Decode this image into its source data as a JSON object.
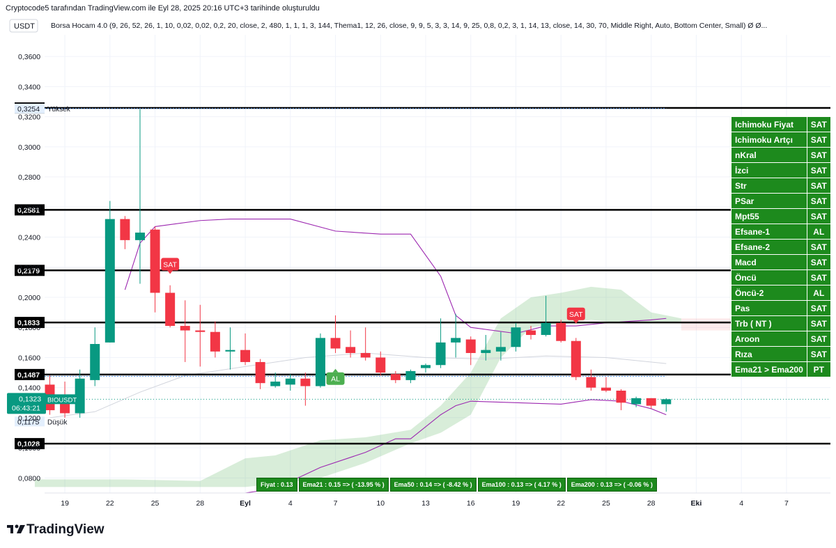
{
  "caption": "Cryptocode5 tarafından TradingView.com ile Eyl 28, 2025 20:16 UTC+3 tarihinde oluşturuldu",
  "indicator_bar": {
    "currency": "USDT",
    "settings": "Borsa Hocam 4.0 (9, 26, 52, 26, 1, 10, 0,02, 0,02, 0,2, 20, close, 2, 480, 1, 1, 1, 3, 144, Thema1, 12, 26, close, 9, 9, 5, 3, 3, 14, 9, 25, 0,8, 0,2, 3, 1, 14, 13, close, 14, 30, 70, Middle Right, Auto, Bottom Center, Small)  Ø  Ø..."
  },
  "brand": "TradingView",
  "colors": {
    "up": "#089981",
    "down": "#f23645",
    "panel_green": "#1d8a1d",
    "ichimoku_line": "#9c27b0"
  },
  "signal_table": [
    {
      "name": "Ichimoku Fiyat",
      "signal": "SAT"
    },
    {
      "name": "Ichimoku Artçı",
      "signal": "SAT"
    },
    {
      "name": "nKral",
      "signal": "SAT"
    },
    {
      "name": "İzci",
      "signal": "SAT"
    },
    {
      "name": "Str",
      "signal": "SAT"
    },
    {
      "name": "PSar",
      "signal": "SAT"
    },
    {
      "name": "Mpt55",
      "signal": "SAT"
    },
    {
      "name": "Efsane-1",
      "signal": "AL"
    },
    {
      "name": "Efsane-2",
      "signal": "SAT"
    },
    {
      "name": "Macd",
      "signal": "SAT"
    },
    {
      "name": "Öncü",
      "signal": "SAT"
    },
    {
      "name": "Öncü-2",
      "signal": "AL"
    },
    {
      "name": "Pas",
      "signal": "SAT"
    },
    {
      "name": "Trb ( NT )",
      "signal": "SAT"
    },
    {
      "name": "Aroon",
      "signal": "SAT"
    },
    {
      "name": "Rıza",
      "signal": "SAT"
    },
    {
      "name": "Ema21 > Ema200",
      "signal": "PT"
    }
  ],
  "ema_strip": [
    "Fiyat : 0.13",
    "Ema21 : 0.15 => ( -13.95 % )",
    "Ema50 : 0.14 => ( -8.42 % )",
    "Ema100 : 0.13 => ( 4.17 % )",
    "Ema200 : 0.13 => ( -0.06 % )"
  ],
  "chart_data": {
    "type": "candlestick",
    "symbol": "BIOUSDT",
    "ylim": [
      0.07,
      0.367
    ],
    "y_ticks": [
      "0,0800",
      "0,1000",
      "0,1200",
      "0,1400",
      "0,1600",
      "0,1800",
      "0,2000",
      "0,2200",
      "0,2400",
      "0,2600",
      "0,2800",
      "0,3000",
      "0,3200",
      "0,3400",
      "0,3600"
    ],
    "x_ticks": [
      {
        "label": "19",
        "i": 1
      },
      {
        "label": "22",
        "i": 4
      },
      {
        "label": "25",
        "i": 7
      },
      {
        "label": "28",
        "i": 10
      },
      {
        "label": "Eyl",
        "i": 13
      },
      {
        "label": "4",
        "i": 16
      },
      {
        "label": "7",
        "i": 19
      },
      {
        "label": "10",
        "i": 22
      },
      {
        "label": "13",
        "i": 25
      },
      {
        "label": "16",
        "i": 28
      },
      {
        "label": "19",
        "i": 31
      },
      {
        "label": "22",
        "i": 34
      },
      {
        "label": "25",
        "i": 37
      },
      {
        "label": "28",
        "i": 40
      },
      {
        "label": "Eki",
        "i": 43
      },
      {
        "label": "4",
        "i": 46
      },
      {
        "label": "7",
        "i": 49
      }
    ],
    "candles": [
      {
        "o": 0.142,
        "h": 0.148,
        "l": 0.122,
        "c": 0.125
      },
      {
        "o": 0.132,
        "h": 0.144,
        "l": 0.12,
        "c": 0.123
      },
      {
        "o": 0.123,
        "h": 0.152,
        "l": 0.12,
        "c": 0.146
      },
      {
        "o": 0.145,
        "h": 0.18,
        "l": 0.141,
        "c": 0.169
      },
      {
        "o": 0.17,
        "h": 0.264,
        "l": 0.17,
        "c": 0.252
      },
      {
        "o": 0.252,
        "h": 0.254,
        "l": 0.232,
        "c": 0.238
      },
      {
        "o": 0.238,
        "h": 0.325,
        "l": 0.209,
        "c": 0.243
      },
      {
        "o": 0.245,
        "h": 0.247,
        "l": 0.19,
        "c": 0.203
      },
      {
        "o": 0.203,
        "h": 0.208,
        "l": 0.18,
        "c": 0.181
      },
      {
        "o": 0.181,
        "h": 0.198,
        "l": 0.157,
        "c": 0.178
      },
      {
        "o": 0.178,
        "h": 0.195,
        "l": 0.154,
        "c": 0.177
      },
      {
        "o": 0.177,
        "h": 0.184,
        "l": 0.16,
        "c": 0.164
      },
      {
        "o": 0.164,
        "h": 0.18,
        "l": 0.152,
        "c": 0.165
      },
      {
        "o": 0.165,
        "h": 0.176,
        "l": 0.155,
        "c": 0.157
      },
      {
        "o": 0.157,
        "h": 0.159,
        "l": 0.139,
        "c": 0.143
      },
      {
        "o": 0.141,
        "h": 0.15,
        "l": 0.14,
        "c": 0.144
      },
      {
        "o": 0.142,
        "h": 0.149,
        "l": 0.138,
        "c": 0.146
      },
      {
        "o": 0.146,
        "h": 0.15,
        "l": 0.128,
        "c": 0.141
      },
      {
        "o": 0.141,
        "h": 0.176,
        "l": 0.14,
        "c": 0.173
      },
      {
        "o": 0.173,
        "h": 0.188,
        "l": 0.163,
        "c": 0.166
      },
      {
        "o": 0.167,
        "h": 0.178,
        "l": 0.16,
        "c": 0.163
      },
      {
        "o": 0.163,
        "h": 0.18,
        "l": 0.158,
        "c": 0.16
      },
      {
        "o": 0.16,
        "h": 0.164,
        "l": 0.148,
        "c": 0.15
      },
      {
        "o": 0.149,
        "h": 0.151,
        "l": 0.143,
        "c": 0.145
      },
      {
        "o": 0.145,
        "h": 0.152,
        "l": 0.143,
        "c": 0.151
      },
      {
        "o": 0.153,
        "h": 0.156,
        "l": 0.15,
        "c": 0.155
      },
      {
        "o": 0.155,
        "h": 0.186,
        "l": 0.153,
        "c": 0.17
      },
      {
        "o": 0.17,
        "h": 0.189,
        "l": 0.16,
        "c": 0.173
      },
      {
        "o": 0.172,
        "h": 0.174,
        "l": 0.155,
        "c": 0.163
      },
      {
        "o": 0.163,
        "h": 0.175,
        "l": 0.158,
        "c": 0.165
      },
      {
        "o": 0.164,
        "h": 0.177,
        "l": 0.158,
        "c": 0.167
      },
      {
        "o": 0.167,
        "h": 0.183,
        "l": 0.164,
        "c": 0.18
      },
      {
        "o": 0.178,
        "h": 0.181,
        "l": 0.172,
        "c": 0.175
      },
      {
        "o": 0.175,
        "h": 0.201,
        "l": 0.174,
        "c": 0.183
      },
      {
        "o": 0.183,
        "h": 0.185,
        "l": 0.17,
        "c": 0.171
      },
      {
        "o": 0.171,
        "h": 0.173,
        "l": 0.145,
        "c": 0.147
      },
      {
        "o": 0.147,
        "h": 0.152,
        "l": 0.138,
        "c": 0.14
      },
      {
        "o": 0.14,
        "h": 0.147,
        "l": 0.137,
        "c": 0.138
      },
      {
        "o": 0.138,
        "h": 0.139,
        "l": 0.125,
        "c": 0.13
      },
      {
        "o": 0.129,
        "h": 0.134,
        "l": 0.127,
        "c": 0.133
      },
      {
        "o": 0.133,
        "h": 0.133,
        "l": 0.126,
        "c": 0.128
      },
      {
        "o": 0.129,
        "h": 0.133,
        "l": 0.124,
        "c": 0.1323
      }
    ],
    "horizontal_levels": [
      {
        "label": "0,3258",
        "value": 0.3258
      },
      {
        "label": "0,2581",
        "value": 0.2581
      },
      {
        "label": "0,2179",
        "value": 0.2179
      },
      {
        "label": "0,1833",
        "value": 0.1833
      },
      {
        "label": "0,1487",
        "value": 0.1487
      },
      {
        "label": "0,1028",
        "value": 0.1028
      }
    ],
    "high_marker": {
      "label": "0,3254",
      "text": "Yüksek",
      "value": 0.3254
    },
    "low_marker": {
      "label": "0,1175",
      "text": "Düşük",
      "value": 0.1175
    },
    "current_price": {
      "label": "0,1323",
      "countdown": "06:43:21",
      "symbol": "BIOUSDT",
      "value": 0.1323
    },
    "signals": [
      {
        "text": "SAT",
        "i": 8,
        "value": 0.222,
        "kind": "sell"
      },
      {
        "text": "AL",
        "i": 19,
        "value": 0.146,
        "kind": "buy"
      },
      {
        "text": "SAT",
        "i": 35,
        "value": 0.189,
        "kind": "sell"
      }
    ],
    "kijun_line": [
      {
        "i": 5,
        "value": 0.205
      },
      {
        "i": 6,
        "value": 0.236
      },
      {
        "i": 7,
        "value": 0.247
      },
      {
        "i": 10,
        "value": 0.251
      },
      {
        "i": 12,
        "value": 0.252
      },
      {
        "i": 16,
        "value": 0.252
      },
      {
        "i": 19,
        "value": 0.244
      },
      {
        "i": 22,
        "value": 0.242
      },
      {
        "i": 24,
        "value": 0.242
      },
      {
        "i": 26,
        "value": 0.214
      },
      {
        "i": 27,
        "value": 0.188
      },
      {
        "i": 28,
        "value": 0.18
      },
      {
        "i": 31,
        "value": 0.176
      },
      {
        "i": 33,
        "value": 0.181
      },
      {
        "i": 35,
        "value": 0.181
      },
      {
        "i": 37,
        "value": 0.183
      },
      {
        "i": 40,
        "value": 0.185
      },
      {
        "i": 41,
        "value": 0.186
      }
    ],
    "lower_line": [
      {
        "i": 13,
        "value": 0.07
      },
      {
        "i": 15,
        "value": 0.073
      },
      {
        "i": 18,
        "value": 0.087
      },
      {
        "i": 21,
        "value": 0.097
      },
      {
        "i": 23,
        "value": 0.106
      },
      {
        "i": 24,
        "value": 0.106
      },
      {
        "i": 26,
        "value": 0.122
      },
      {
        "i": 27,
        "value": 0.128
      },
      {
        "i": 28,
        "value": 0.131
      },
      {
        "i": 31,
        "value": 0.13
      },
      {
        "i": 34,
        "value": 0.129
      },
      {
        "i": 36,
        "value": 0.132
      },
      {
        "i": 38,
        "value": 0.131
      },
      {
        "i": 40,
        "value": 0.126
      },
      {
        "i": 41,
        "value": 0.122
      }
    ],
    "cloud": [
      {
        "i": -1,
        "a": 0.079,
        "b": 0.074
      },
      {
        "i": 5,
        "a": 0.079,
        "b": 0.074
      },
      {
        "i": 10,
        "a": 0.078,
        "b": 0.074
      },
      {
        "i": 13,
        "a": 0.093,
        "b": 0.074
      },
      {
        "i": 15,
        "a": 0.095,
        "b": 0.076
      },
      {
        "i": 18,
        "a": 0.105,
        "b": 0.08
      },
      {
        "i": 21,
        "a": 0.107,
        "b": 0.09
      },
      {
        "i": 24,
        "a": 0.112,
        "b": 0.103
      },
      {
        "i": 26,
        "a": 0.128,
        "b": 0.11
      },
      {
        "i": 28,
        "a": 0.15,
        "b": 0.122
      },
      {
        "i": 30,
        "a": 0.186,
        "b": 0.16
      },
      {
        "i": 32,
        "a": 0.2,
        "b": 0.18
      },
      {
        "i": 34,
        "a": 0.203,
        "b": 0.183
      },
      {
        "i": 36,
        "a": 0.207,
        "b": 0.185
      },
      {
        "i": 38,
        "a": 0.205,
        "b": 0.183
      },
      {
        "i": 40,
        "a": 0.19,
        "b": 0.183
      },
      {
        "i": 42,
        "a": 0.186,
        "b": 0.184
      }
    ],
    "ema_line": [
      {
        "i": 0,
        "value": 0.12
      },
      {
        "i": 3,
        "value": 0.124
      },
      {
        "i": 6,
        "value": 0.137
      },
      {
        "i": 9,
        "value": 0.148
      },
      {
        "i": 13,
        "value": 0.154
      },
      {
        "i": 17,
        "value": 0.16
      },
      {
        "i": 21,
        "value": 0.163
      },
      {
        "i": 25,
        "value": 0.16
      },
      {
        "i": 29,
        "value": 0.159
      },
      {
        "i": 33,
        "value": 0.161
      },
      {
        "i": 37,
        "value": 0.16
      },
      {
        "i": 41,
        "value": 0.156
      }
    ]
  }
}
